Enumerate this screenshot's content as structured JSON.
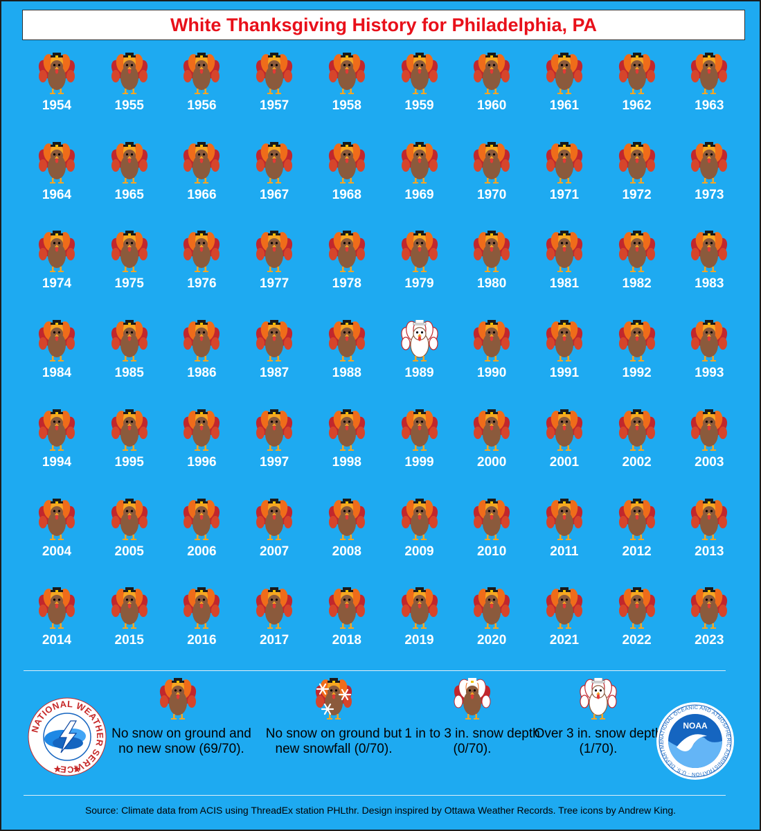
{
  "title": "White Thanksgiving History for Philadelphia, PA",
  "chart_data": {
    "type": "table",
    "title": "White Thanksgiving History for Philadelphia, PA",
    "categories": [
      "No snow on ground and no new snow",
      "No snow on ground but new snowfall",
      "1 in to 3 in. snow depth",
      "Over 3 in. snow depth"
    ],
    "years": [
      1954,
      1955,
      1956,
      1957,
      1958,
      1959,
      1960,
      1961,
      1962,
      1963,
      1964,
      1965,
      1966,
      1967,
      1968,
      1969,
      1970,
      1971,
      1972,
      1973,
      1974,
      1975,
      1976,
      1977,
      1978,
      1979,
      1980,
      1981,
      1982,
      1983,
      1984,
      1985,
      1986,
      1987,
      1988,
      1989,
      1990,
      1991,
      1992,
      1993,
      1994,
      1995,
      1996,
      1997,
      1998,
      1999,
      2000,
      2001,
      2002,
      2003,
      2004,
      2005,
      2006,
      2007,
      2008,
      2009,
      2010,
      2011,
      2012,
      2013,
      2014,
      2015,
      2016,
      2017,
      2018,
      2019,
      2020,
      2021,
      2022,
      2023
    ],
    "category_by_year": {
      "1954": "none",
      "1955": "none",
      "1956": "none",
      "1957": "none",
      "1958": "none",
      "1959": "none",
      "1960": "none",
      "1961": "none",
      "1962": "none",
      "1963": "none",
      "1964": "none",
      "1965": "none",
      "1966": "none",
      "1967": "none",
      "1968": "none",
      "1969": "none",
      "1970": "none",
      "1971": "none",
      "1972": "none",
      "1973": "none",
      "1974": "none",
      "1975": "none",
      "1976": "none",
      "1977": "none",
      "1978": "none",
      "1979": "none",
      "1980": "none",
      "1981": "none",
      "1982": "none",
      "1983": "none",
      "1984": "none",
      "1985": "none",
      "1986": "none",
      "1987": "none",
      "1988": "none",
      "1989": "over3",
      "1990": "none",
      "1991": "none",
      "1992": "none",
      "1993": "none",
      "1994": "none",
      "1995": "none",
      "1996": "none",
      "1997": "none",
      "1998": "none",
      "1999": "none",
      "2000": "none",
      "2001": "none",
      "2002": "none",
      "2003": "none",
      "2004": "none",
      "2005": "none",
      "2006": "none",
      "2007": "none",
      "2008": "none",
      "2009": "none",
      "2010": "none",
      "2011": "none",
      "2012": "none",
      "2013": "none",
      "2014": "none",
      "2015": "none",
      "2016": "none",
      "2017": "none",
      "2018": "none",
      "2019": "none",
      "2020": "none",
      "2021": "none",
      "2022": "none",
      "2023": "none"
    },
    "counts": {
      "none": 69,
      "newsnow": 0,
      "depth1to3": 0,
      "over3": 1
    },
    "total": 70
  },
  "legend": {
    "none": "No snow on ground and no new snow (69/70).",
    "newsnow": "No snow on ground but new snowfall (0/70).",
    "depth1to3": "1 in to 3 in. snow depth (0/70).",
    "over3": "Over 3 in. snow depth (1/70)."
  },
  "source": "Source: Climate data from ACIS using ThreadEx station PHLthr. Design inspired by Ottawa Weather Records. Tree icons by Andrew King.",
  "logos": {
    "nws": "NATIONAL WEATHER SERVICE",
    "noaa": "NOAA",
    "noaa_ring": "NATIONAL OCEANIC AND ATMOSPHERIC ADMINISTRATION · U.S. DEPARTMENT OF COMMERCE"
  },
  "colors": {
    "background": "#1eaaf1",
    "title": "#e8101a",
    "year_text": "#ffffff"
  },
  "icons": {
    "none": "brown-turkey-icon",
    "newsnow": "snowflake-turkey-icon",
    "depth1to3": "partly-white-turkey-icon",
    "over3": "white-turkey-icon"
  }
}
